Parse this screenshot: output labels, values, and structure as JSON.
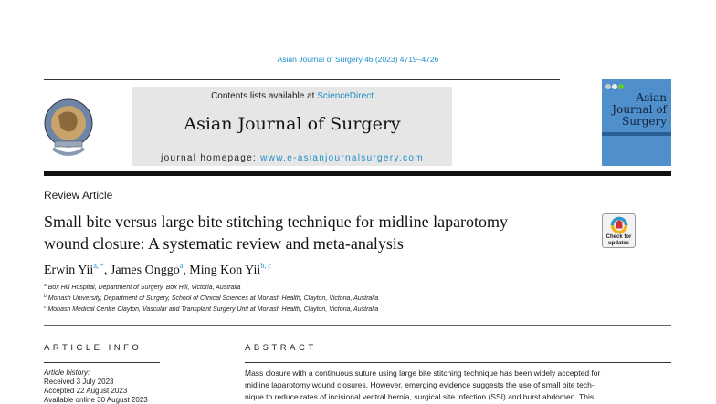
{
  "header": {
    "citation": "Asian Journal of Surgery 46 (2023) 4719–4726",
    "contents_prefix": "Contents lists available at ",
    "contents_link": "ScienceDirect",
    "journal_title": "Asian Journal of Surgery",
    "homepage_prefix": "journal homepage: ",
    "homepage_link": "www.e-asianjournalsurgery.com",
    "cover_title": "Asian Journal of Surgery",
    "logo": "society-seal",
    "check_updates": "Check for updates"
  },
  "article": {
    "type": "Review Article",
    "title_line1": "Small bite versus large bite stitching technique for midline laparotomy",
    "title_line2": "wound closure: A systematic review and meta-analysis",
    "authors": [
      {
        "name": "Erwin Yii",
        "sup": "a, *"
      },
      {
        "name": "James Onggo",
        "sup": "a"
      },
      {
        "name": "Ming Kon Yii",
        "sup": "b, c"
      }
    ],
    "affiliations": [
      {
        "key": "a",
        "text": "Box Hill Hospital, Department of Surgery, Box Hill, Victoria, Australia"
      },
      {
        "key": "b",
        "text": "Monash University, Department of Surgery, School of Clinical Sciences at Monash Health, Clayton, Victoria, Australia"
      },
      {
        "key": "c",
        "text": "Monash Medical Centre Clayton, Vascular and Transplant Surgery Unit at Monash Health, Clayton, Victoria, Australia"
      }
    ]
  },
  "info": {
    "heading": "ARTICLE INFO",
    "history_label": "Article history:",
    "received": "Received 3 July 2023",
    "accepted": "Accepted 22 August 2023",
    "available": "Available online 30 August 2023"
  },
  "abstract": {
    "heading": "ABSTRACT",
    "lines": [
      "Mass closure with a continuous suture using large bite stitching technique has been widely accepted for",
      "midline laparotomy wound closures. However, emerging evidence suggests the use of small bite tech-",
      "nique to reduce rates of incisional ventral hernia, surgical site infection (SSI) and burst abdomen. This"
    ]
  }
}
